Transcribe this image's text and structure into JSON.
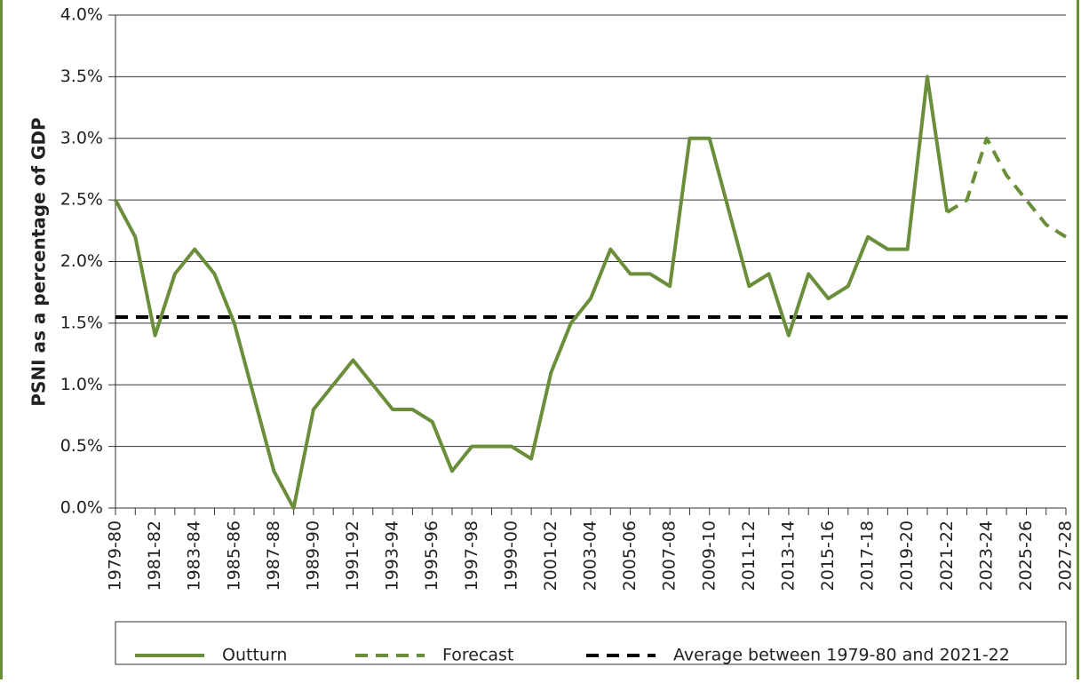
{
  "chart_data": {
    "type": "line",
    "y_label": "PSNI as a percentage of GDP",
    "categories": [
      "1979-80",
      null,
      "1981-82",
      null,
      "1983-84",
      null,
      "1985-86",
      null,
      "1987-88",
      null,
      "1989-90",
      null,
      "1991-92",
      null,
      "1993-94",
      null,
      "1995-96",
      null,
      "1997-98",
      null,
      "1999-00",
      null,
      "2001-02",
      null,
      "2003-04",
      null,
      "2005-06",
      null,
      "2007-08",
      null,
      "2009-10",
      null,
      "2011-12",
      null,
      "2013-14",
      null,
      "2015-16",
      null,
      "2017-18",
      null,
      "2019-20",
      null,
      "2021-22",
      null,
      "2023-24",
      null,
      "2025-26",
      null,
      "2027-28"
    ],
    "series": [
      {
        "name": "Outturn",
        "color": "#6b8e3a",
        "dash": "solid",
        "values": [
          2.5,
          2.2,
          1.4,
          1.9,
          2.1,
          1.9,
          1.5,
          0.9,
          0.3,
          0.0,
          0.8,
          1.0,
          1.2,
          1.0,
          0.8,
          0.8,
          0.7,
          0.3,
          0.5,
          0.5,
          0.5,
          0.4,
          1.1,
          1.5,
          1.7,
          2.1,
          1.9,
          1.9,
          1.8,
          3.0,
          3.0,
          2.4,
          1.8,
          1.9,
          1.4,
          1.9,
          1.7,
          1.8,
          2.2,
          2.1,
          2.1,
          3.5,
          2.4,
          null,
          null,
          null,
          null,
          null,
          null
        ]
      },
      {
        "name": "Forecast",
        "color": "#6b8e3a",
        "dash": "dashed",
        "values": [
          null,
          null,
          null,
          null,
          null,
          null,
          null,
          null,
          null,
          null,
          null,
          null,
          null,
          null,
          null,
          null,
          null,
          null,
          null,
          null,
          null,
          null,
          null,
          null,
          null,
          null,
          null,
          null,
          null,
          null,
          null,
          null,
          null,
          null,
          null,
          null,
          null,
          null,
          null,
          null,
          null,
          null,
          2.4,
          2.5,
          3.0,
          2.7,
          2.5,
          2.3,
          2.2
        ]
      }
    ],
    "reference_line": {
      "name": "Average between 1979-80 and 2021-22",
      "color": "#000000",
      "dash": "dashed",
      "value": 1.55
    },
    "ylim": [
      0,
      4
    ],
    "yticks": [
      {
        "value": 0,
        "label": "0.0%"
      },
      {
        "value": 0.5,
        "label": "0.5%"
      },
      {
        "value": 1,
        "label": "1.0%"
      },
      {
        "value": 1.5,
        "label": "1.5%"
      },
      {
        "value": 2,
        "label": "2.0%"
      },
      {
        "value": 2.5,
        "label": "2.5%"
      },
      {
        "value": 3,
        "label": "3.0%"
      },
      {
        "value": 3.5,
        "label": "3.5%"
      },
      {
        "value": 4,
        "label": "4.0%"
      }
    ],
    "grid": true,
    "legend": "bottom"
  }
}
